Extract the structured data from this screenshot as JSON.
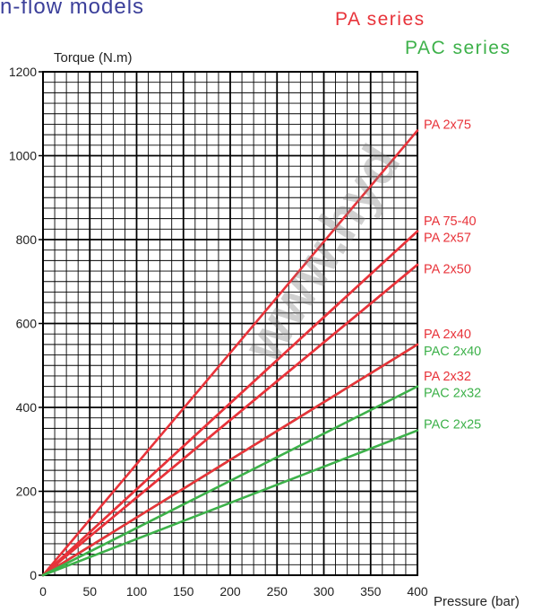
{
  "header": {
    "heading": "n-flow models",
    "heading_color": "#3b3f9a"
  },
  "legend": {
    "pa_series": "PA series",
    "pac_series": "PAC series",
    "pa_color": "#e8333a",
    "pac_color": "#3db14a"
  },
  "watermark": "www.hyd",
  "chart_data": {
    "type": "line",
    "xlabel": "Pressure (bar)",
    "ylabel": "Torque (N.m)",
    "xlim": [
      0,
      400
    ],
    "ylim": [
      0,
      1200
    ],
    "x_ticks": [
      "0",
      "50",
      "100",
      "150",
      "200",
      "250",
      "300",
      "350",
      "400"
    ],
    "y_ticks": [
      "0",
      "200",
      "400",
      "600",
      "800",
      "1000",
      "1200"
    ],
    "grid": true,
    "legend": "right",
    "series": [
      {
        "name": "PA 2x75",
        "group": "PA",
        "color": "#e8333a",
        "x": [
          0,
          400
        ],
        "y": [
          0,
          1060
        ]
      },
      {
        "name": "PA 75-40",
        "group": "PA",
        "color": "#e8333a",
        "x": [
          0,
          400
        ],
        "y": [
          0,
          820
        ]
      },
      {
        "name": "PA 2x57",
        "group": "PA",
        "color": "#e8333a",
        "x": [
          0,
          400
        ],
        "y": [
          0,
          820
        ]
      },
      {
        "name": "PA 2x50",
        "group": "PA",
        "color": "#e8333a",
        "x": [
          0,
          400
        ],
        "y": [
          0,
          740
        ]
      },
      {
        "name": "PA 2x40",
        "group": "PA",
        "color": "#e8333a",
        "x": [
          0,
          400
        ],
        "y": [
          0,
          740
        ]
      },
      {
        "name": "PAC 2x40",
        "group": "PAC",
        "color": "#3db14a",
        "x": [
          0,
          400
        ],
        "y": [
          0,
          550
        ]
      },
      {
        "name": "PA 2x32",
        "group": "PA",
        "color": "#e8333a",
        "x": [
          0,
          400
        ],
        "y": [
          0,
          550
        ]
      },
      {
        "name": "PAC 2x32",
        "group": "PAC",
        "color": "#3db14a",
        "x": [
          0,
          400
        ],
        "y": [
          0,
          450
        ]
      },
      {
        "name": "PAC 2x25",
        "group": "PAC",
        "color": "#3db14a",
        "x": [
          0,
          400
        ],
        "y": [
          0,
          345
        ]
      }
    ],
    "right_labels": [
      {
        "text": "PA 2x75",
        "color": "#e8333a",
        "y": 1075
      },
      {
        "text": "PA 75-40",
        "color": "#e8333a",
        "y": 845
      },
      {
        "text": "PA 2x57",
        "color": "#e8333a",
        "y": 805
      },
      {
        "text": "PA 2x50",
        "color": "#e8333a",
        "y": 730
      },
      {
        "text": "PA 2x40",
        "color": "#e8333a",
        "y": 575
      },
      {
        "text": "PAC 2x40",
        "color": "#3db14a",
        "y": 535
      },
      {
        "text": "PA 2x32",
        "color": "#e8333a",
        "y": 475
      },
      {
        "text": "PAC 2x32",
        "color": "#3db14a",
        "y": 435
      },
      {
        "text": "PAC 2x25",
        "color": "#3db14a",
        "y": 360
      }
    ]
  }
}
